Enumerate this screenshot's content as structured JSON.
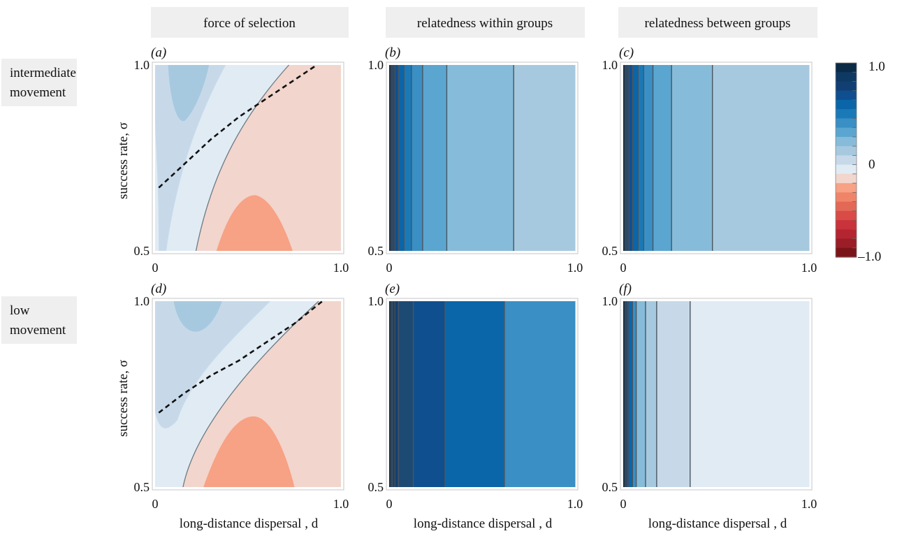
{
  "column_headers": [
    "force of selection",
    "relatedness within groups",
    "relatedness between groups"
  ],
  "row_labels": [
    [
      "intermediate",
      "movement"
    ],
    [
      "low",
      "movement"
    ]
  ],
  "panel_labels": [
    "(a)",
    "(b)",
    "(c)",
    "(d)",
    "(e)",
    "(f)"
  ],
  "y_axis_label": "success rate, σ",
  "x_axis_label": "long-distance dispersal , d",
  "x_ticks": [
    "0",
    "1.0"
  ],
  "y_ticks": [
    "0.5",
    "1.0"
  ],
  "colorbar": {
    "ticks": [
      "1.0",
      "0",
      "–1.0"
    ],
    "levels": [
      "#0b2a45",
      "#0d3963",
      "#123f73",
      "#0f4f8f",
      "#0a66a8",
      "#1a7ab8",
      "#3a8fc4",
      "#5aa6d0",
      "#86bcd9",
      "#a6c9df",
      "#c7d9e9",
      "#e0ebf4",
      "#f2d5cc",
      "#f7a185",
      "#ef8469",
      "#e36856",
      "#d94b47",
      "#c9333b",
      "#b52531",
      "#9a1d28",
      "#7b1419"
    ]
  },
  "chart_data": [
    {
      "panel": "(a)",
      "type": "heatmap",
      "title": "force of selection — intermediate movement",
      "xlabel": "",
      "ylabel": "success rate, σ",
      "xlim": [
        0,
        1
      ],
      "ylim": [
        0.5,
        1.0
      ],
      "regions": [
        {
          "level": "positive (strong)",
          "color": "#a6c9df",
          "region": "top-left lobe, d≈0.05–0.3, σ>0.85"
        },
        {
          "level": "positive (weak)",
          "color": "#c7d9e9",
          "region": "left wedge, small d, all σ"
        },
        {
          "level": "positive (very weak)",
          "color": "#e0ebf4",
          "region": "band between wedge and zero contour"
        },
        {
          "level": "negative (weak)",
          "color": "#f2d5cc",
          "region": "lower-right, right of zero contour"
        },
        {
          "level": "negative (strong)",
          "color": "#f7a185",
          "region": "bottom lobe, d≈0.33–0.75, σ<0.65"
        }
      ],
      "threshold_curve": {
        "style": "dashed",
        "x": [
          0.02,
          0.15,
          0.3,
          0.45,
          0.6,
          0.75,
          0.87
        ],
        "y": [
          0.67,
          0.73,
          0.8,
          0.86,
          0.91,
          0.96,
          1.0
        ]
      }
    },
    {
      "panel": "(b)",
      "type": "heatmap",
      "title": "relatedness within groups — intermediate movement",
      "xlim": [
        0,
        1
      ],
      "ylim": [
        0.5,
        1.0
      ],
      "band_boundaries_d": [
        0.0,
        0.01,
        0.02,
        0.03,
        0.05,
        0.08,
        0.12,
        0.18,
        0.31,
        0.67,
        1.0
      ],
      "band_colors": [
        "#0b2a45",
        "#0d3963",
        "#123f73",
        "#0f4f8f",
        "#0a66a8",
        "#1a7ab8",
        "#3a8fc4",
        "#5aa6d0",
        "#86bcd9",
        "#a6c9df"
      ]
    },
    {
      "panel": "(c)",
      "type": "heatmap",
      "title": "relatedness between groups — intermediate movement",
      "xlim": [
        0,
        1
      ],
      "ylim": [
        0.5,
        1.0
      ],
      "band_boundaries_d": [
        0.0,
        0.01,
        0.02,
        0.03,
        0.05,
        0.08,
        0.11,
        0.16,
        0.26,
        0.48,
        1.0
      ],
      "band_colors": [
        "#0b2a45",
        "#0d3963",
        "#123f73",
        "#0f4f8f",
        "#0a66a8",
        "#1a7ab8",
        "#3a8fc4",
        "#5aa6d0",
        "#86bcd9",
        "#a6c9df"
      ]
    },
    {
      "panel": "(d)",
      "type": "heatmap",
      "title": "force of selection — low movement",
      "xlabel": "long-distance dispersal , d",
      "ylabel": "success rate, σ",
      "xlim": [
        0,
        1
      ],
      "ylim": [
        0.5,
        1.0
      ],
      "regions": [
        {
          "level": "positive (strong)",
          "color": "#a6c9df",
          "region": "top lobe, d≈0.07–0.35, σ>0.92"
        },
        {
          "level": "positive (weak)",
          "color": "#c7d9e9",
          "region": "upper-left, small d"
        },
        {
          "level": "positive (very weak)",
          "color": "#e0ebf4",
          "region": "left of zero contour"
        },
        {
          "level": "negative (weak)",
          "color": "#f2d5cc",
          "region": "lower-right, right of zero contour"
        },
        {
          "level": "negative (strong)",
          "color": "#f7a185",
          "region": "bottom lobe, d≈0.27–0.75, σ<0.7"
        }
      ],
      "threshold_curve": {
        "style": "dashed",
        "x": [
          0.02,
          0.15,
          0.3,
          0.45,
          0.6,
          0.75,
          0.9
        ],
        "y": [
          0.7,
          0.75,
          0.8,
          0.84,
          0.89,
          0.94,
          1.0
        ]
      }
    },
    {
      "panel": "(e)",
      "type": "heatmap",
      "title": "relatedness within groups — low movement",
      "xlabel": "long-distance dispersal , d",
      "xlim": [
        0,
        1
      ],
      "ylim": [
        0.5,
        1.0
      ],
      "band_boundaries_d": [
        0.0,
        0.01,
        0.02,
        0.03,
        0.05,
        0.13,
        0.3,
        0.62,
        1.0
      ],
      "band_colors": [
        "#0b2a45",
        "#0d3963",
        "#0d2f52",
        "#123f73",
        "#1d4a72",
        "#0f4f8f",
        "#0a66a8",
        "#3a8fc4"
      ]
    },
    {
      "panel": "(f)",
      "type": "heatmap",
      "title": "relatedness between groups — low movement",
      "xlabel": "long-distance dispersal , d",
      "xlim": [
        0,
        1
      ],
      "ylim": [
        0.5,
        1.0
      ],
      "band_boundaries_d": [
        0.0,
        0.01,
        0.02,
        0.03,
        0.05,
        0.07,
        0.12,
        0.18,
        0.36,
        1.0
      ],
      "band_colors": [
        "#0b2a45",
        "#0d3963",
        "#0f4f8f",
        "#0a66a8",
        "#3a8fc4",
        "#86bcd9",
        "#a6c9df",
        "#c7d9e9",
        "#e0ebf4"
      ]
    }
  ]
}
